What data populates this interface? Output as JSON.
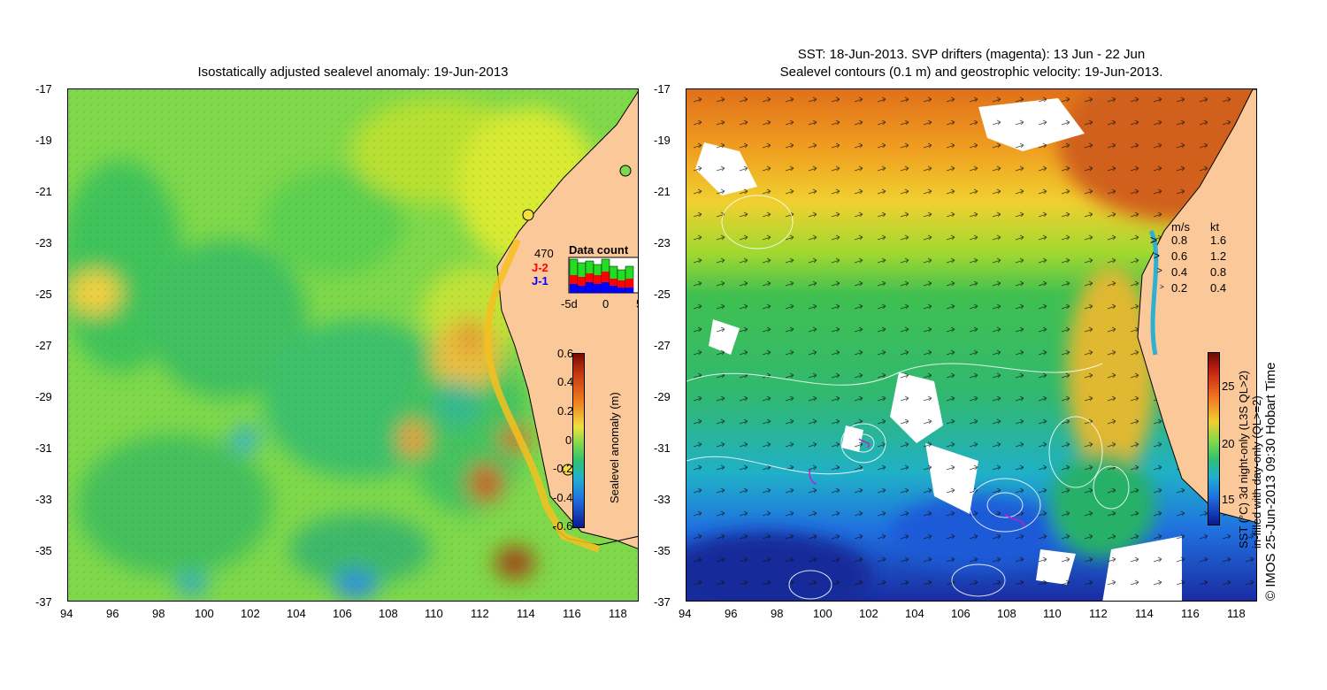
{
  "left": {
    "title": "Isostatically adjusted sealevel anomaly: 19-Jun-2013",
    "y_ticks": [
      "-17",
      "-19",
      "-21",
      "-23",
      "-25",
      "-27",
      "-29",
      "-31",
      "-33",
      "-35",
      "-37"
    ],
    "x_ticks": [
      "94",
      "96",
      "98",
      "100",
      "102",
      "104",
      "106",
      "108",
      "110",
      "112",
      "114",
      "116",
      "118"
    ],
    "data_count": {
      "title": "Data count",
      "total": "470",
      "series": [
        {
          "label": "J-2",
          "color": "#ff0000"
        },
        {
          "label": "J-1",
          "color": "#0000ff"
        }
      ],
      "axis": [
        "-5d",
        "0",
        "5"
      ]
    },
    "colorbar": {
      "label": "Sealevel anomaly (m)",
      "ticks": [
        "0.6",
        "0.4",
        "0.2",
        "0",
        "-0.2",
        "-0.4",
        "-0.6"
      ]
    }
  },
  "right": {
    "title_line1": "SST: 18-Jun-2013. SVP drifters (magenta): 13 Jun - 22 Jun",
    "title_line2": "Sealevel contours (0.1 m) and geostrophic velocity: 19-Jun-2013.",
    "y_ticks": [
      "-17",
      "-19",
      "-21",
      "-23",
      "-25",
      "-27",
      "-29",
      "-31",
      "-33",
      "-35",
      "-37"
    ],
    "x_ticks": [
      "94",
      "96",
      "98",
      "100",
      "102",
      "104",
      "106",
      "108",
      "110",
      "112",
      "114",
      "116",
      "118"
    ],
    "speed_legend": {
      "header_ms": "m/s",
      "header_kt": "kt",
      "rows": [
        {
          "ms": "0.8",
          "kt": "1.6"
        },
        {
          "ms": "0.6",
          "kt": "1.2"
        },
        {
          "ms": "0.4",
          "kt": "0.8"
        },
        {
          "ms": "0.2",
          "kt": "0.4"
        }
      ]
    },
    "colorbar": {
      "label_line1": "SST (°C) 3d night-only (L3S QL>2)",
      "label_line2": "in-filled with day-only (QL>=2)",
      "ticks": [
        "25",
        "20",
        "15"
      ]
    },
    "credit": "© IMOS 25-Jun-2013 09:30 Hobart Time"
  }
}
